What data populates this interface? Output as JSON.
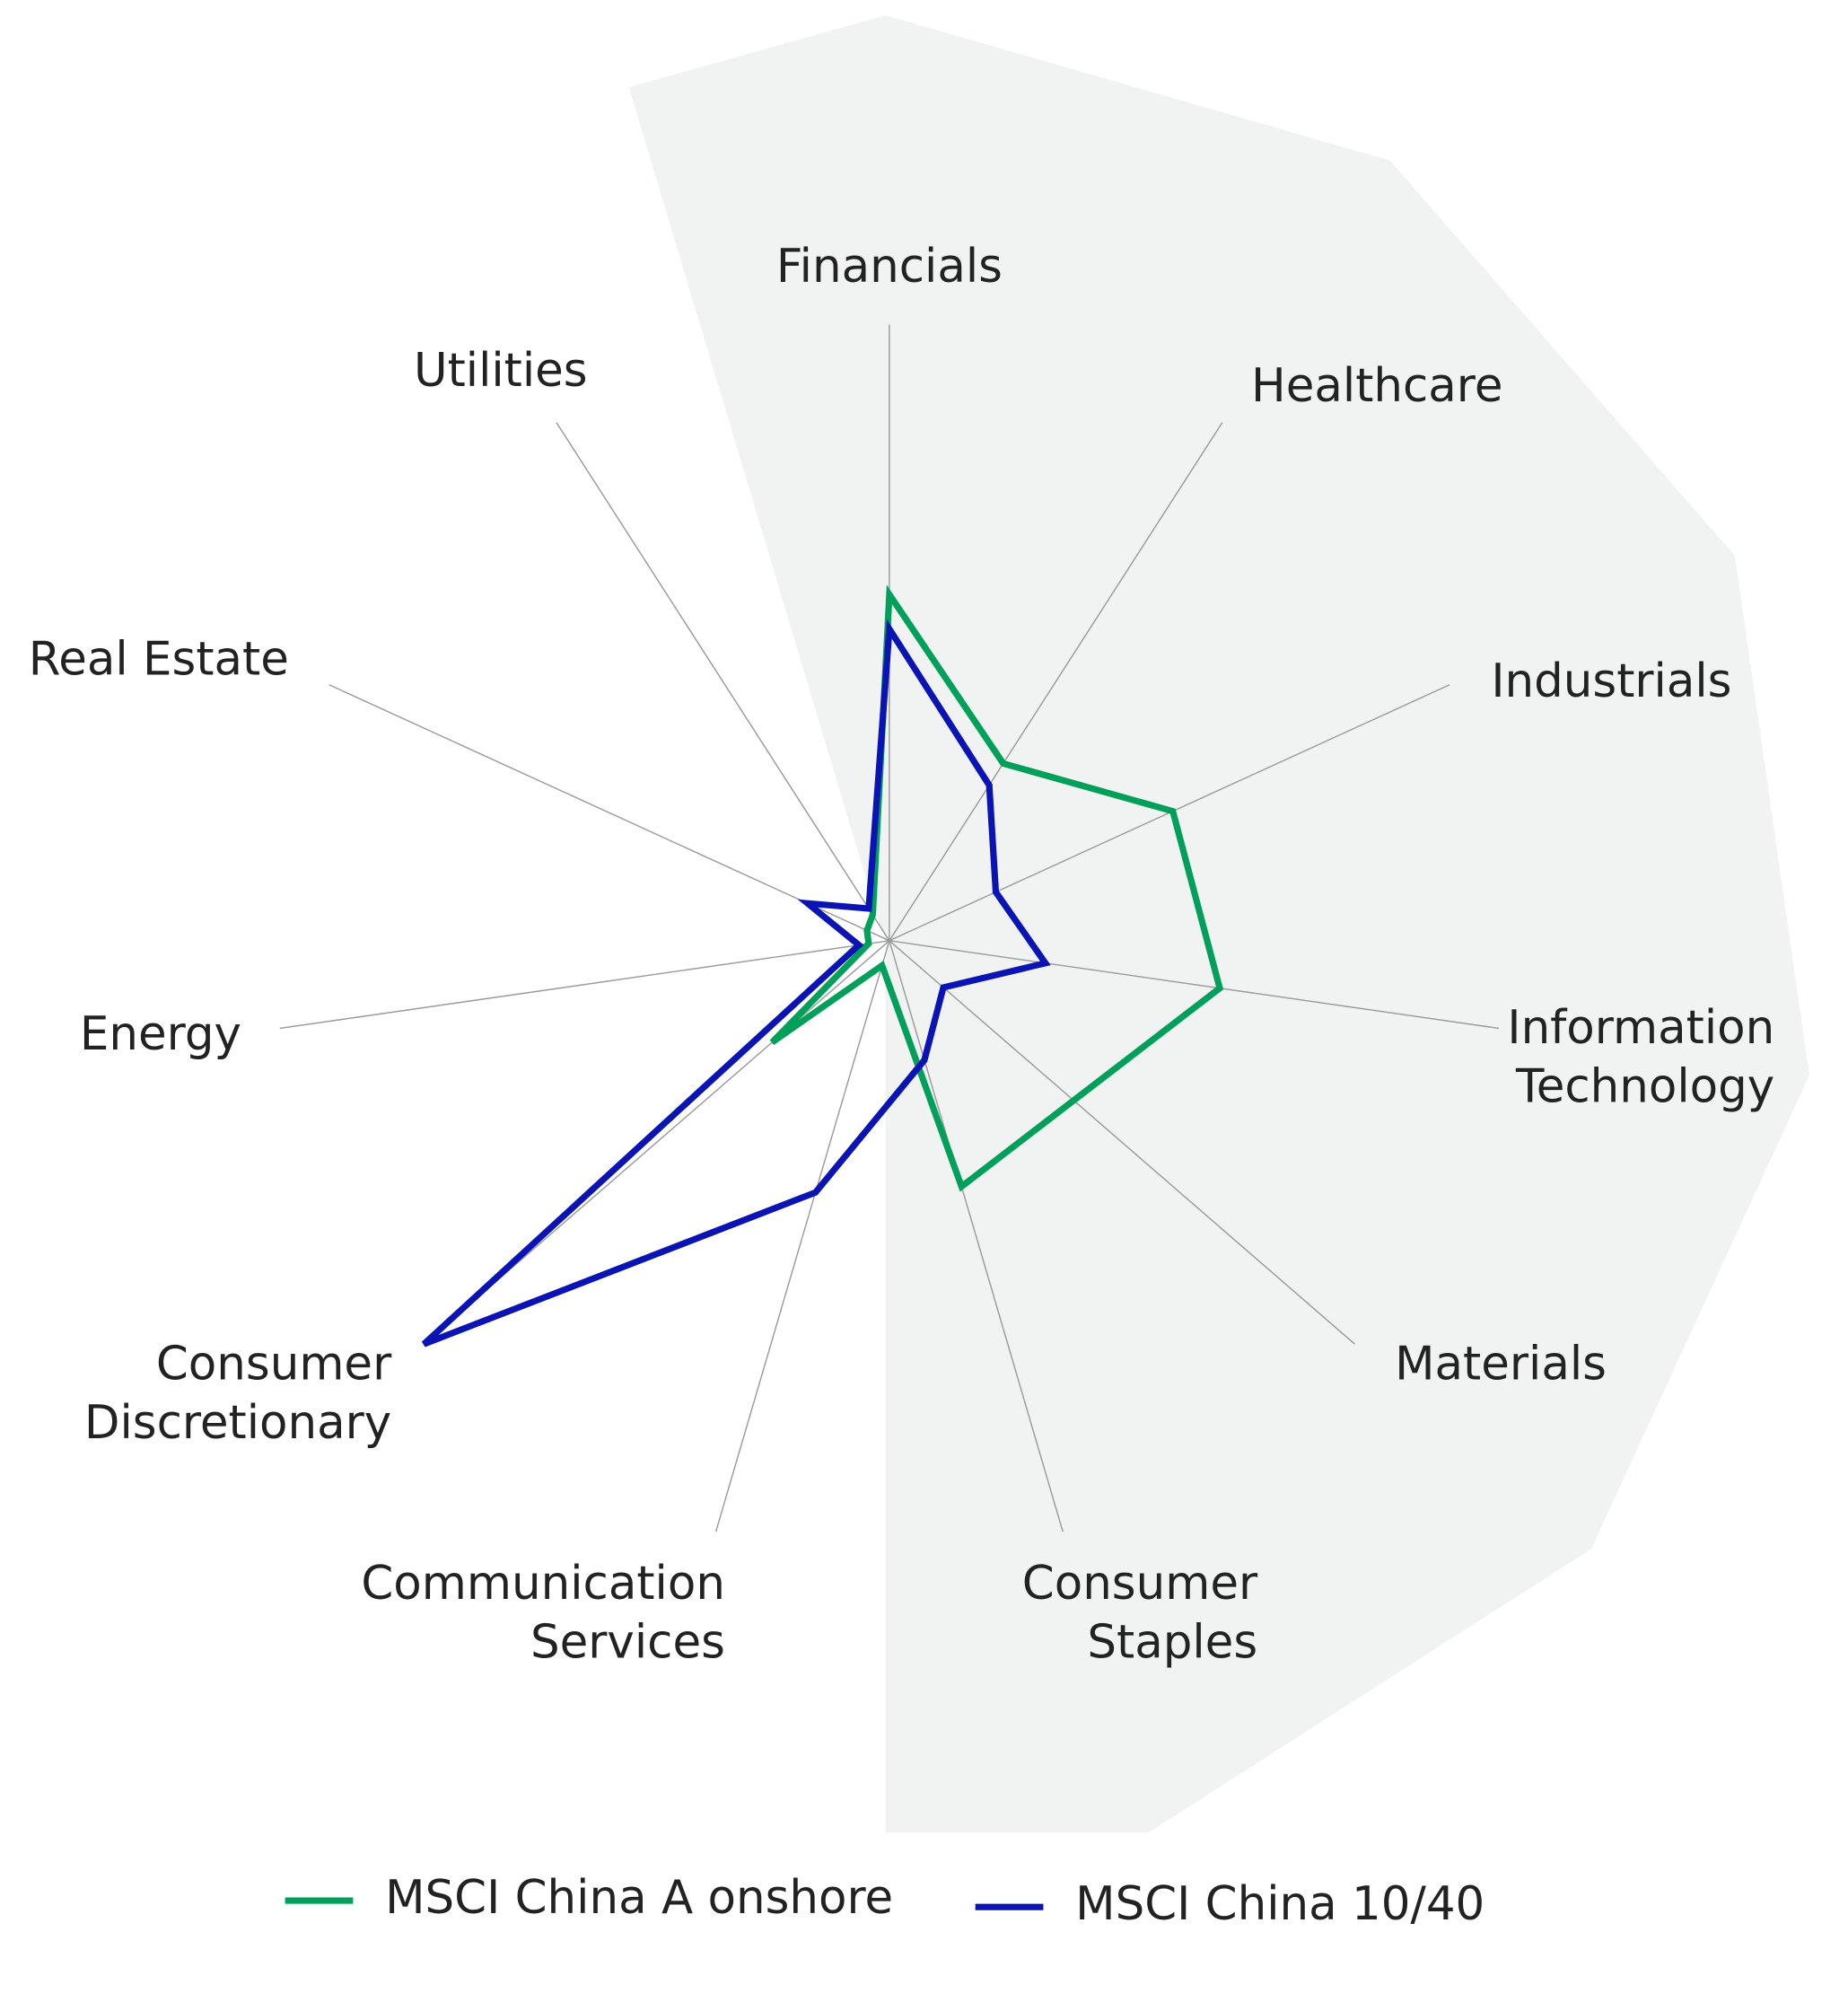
{
  "chart_data": {
    "type": "radar",
    "categories": [
      "Financials",
      "Healthcare",
      "Industrials",
      "Information Technology",
      "Materials",
      "Consumer Staples",
      "Communication Services",
      "Consumer Discretionary",
      "Energy",
      "Real Estate",
      "Utilities"
    ],
    "rlim": [
      0,
      50
    ],
    "series": [
      {
        "name": "MSCI China A onshore",
        "color": "#00a05a",
        "values": [
          28.1,
          17.1,
          25.3,
          27.1,
          19.8,
          20.8,
          2.1,
          12.6,
          1.7,
          2.0,
          2.5
        ]
      },
      {
        "name": "MSCI China 10/40",
        "color": "#0a14b4",
        "values": [
          25.3,
          15.0,
          9.5,
          12.8,
          5.8,
          10.1,
          21.3,
          50,
          2.5,
          7.3,
          3.1
        ]
      }
    ]
  }
}
